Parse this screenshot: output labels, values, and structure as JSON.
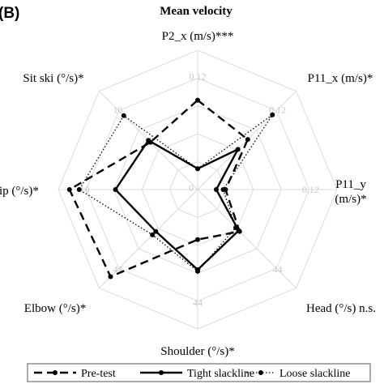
{
  "chart_data": {
    "type": "radar",
    "panel_label": "(B)",
    "title": "Mean velocity",
    "axes": [
      {
        "label_lines": [
          "P2_x (m/s)***"
        ],
        "max_label": "0.12",
        "max": 0.12
      },
      {
        "label_lines": [
          "P11_x (m/s)*"
        ],
        "max_label": "0.12",
        "max": 0.12
      },
      {
        "label_lines": [
          "P11_y",
          "(m/s)*"
        ],
        "max_label": "0.12",
        "max": 0.12
      },
      {
        "label_lines": [
          "Head (°/s) n.s."
        ],
        "max_label": "44",
        "max": 44
      },
      {
        "label_lines": [
          "Shoulder (°/s)*"
        ],
        "max_label": "44",
        "max": 44
      },
      {
        "label_lines": [
          "Elbow (°/s)*"
        ],
        "max_label": "44",
        "max": 44
      },
      {
        "label_lines": [
          "Hip (°/s)*"
        ],
        "max_label": "10",
        "max": 10
      },
      {
        "label_lines": [
          "Sit ski (°/s)*"
        ],
        "max_label": "10",
        "max": 10
      }
    ],
    "center_label": "0",
    "grid_levels": 5,
    "series": [
      {
        "name": "Pre-test",
        "style": "dashed",
        "values": [
          0.077,
          0.061,
          0.024,
          18.7,
          15.8,
          38.9,
          9.2,
          4.8
        ]
      },
      {
        "name": "Tight slackline",
        "style": "solid",
        "values": [
          0.018,
          0.049,
          0.016,
          18.3,
          25.3,
          18.7,
          5.9,
          5.0
        ]
      },
      {
        "name": "Loose slackline",
        "style": "dotted",
        "values": [
          0.018,
          0.091,
          0.022,
          17.0,
          25.8,
          20.2,
          8.5,
          7.5
        ]
      }
    ],
    "legend_position": "bottom"
  }
}
